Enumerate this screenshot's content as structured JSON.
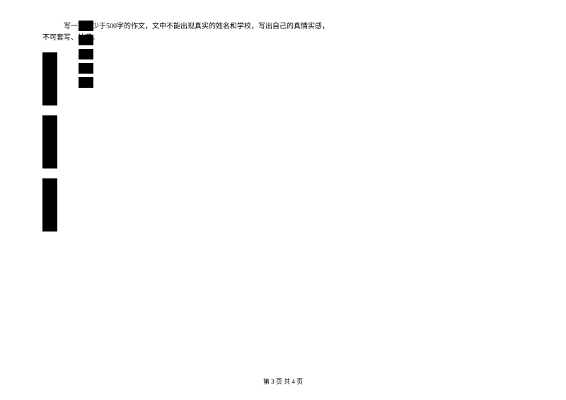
{
  "instruction": {
    "line1": "写一篇不少于500字的作文，文中不能出现真实的姓名和学校，写出自己的真情实感，",
    "line2": "不可套写、抄袭。"
  },
  "footer": {
    "text": "第 3 页 共 4 页"
  },
  "grid": {
    "left_blocks": [
      {
        "rows": 5,
        "cols": 20
      },
      {
        "rows": 5,
        "cols": 20
      },
      {
        "rows": 5,
        "cols": 20
      }
    ],
    "right_blocks": [
      {
        "rows": 1,
        "cols": 20
      },
      {
        "rows": 1,
        "cols": 20
      },
      {
        "rows": 1,
        "cols": 20
      },
      {
        "rows": 1,
        "cols": 20
      },
      {
        "rows": 1,
        "cols": 20
      }
    ],
    "border_color": "#000000",
    "background_color": "#ffffff"
  }
}
